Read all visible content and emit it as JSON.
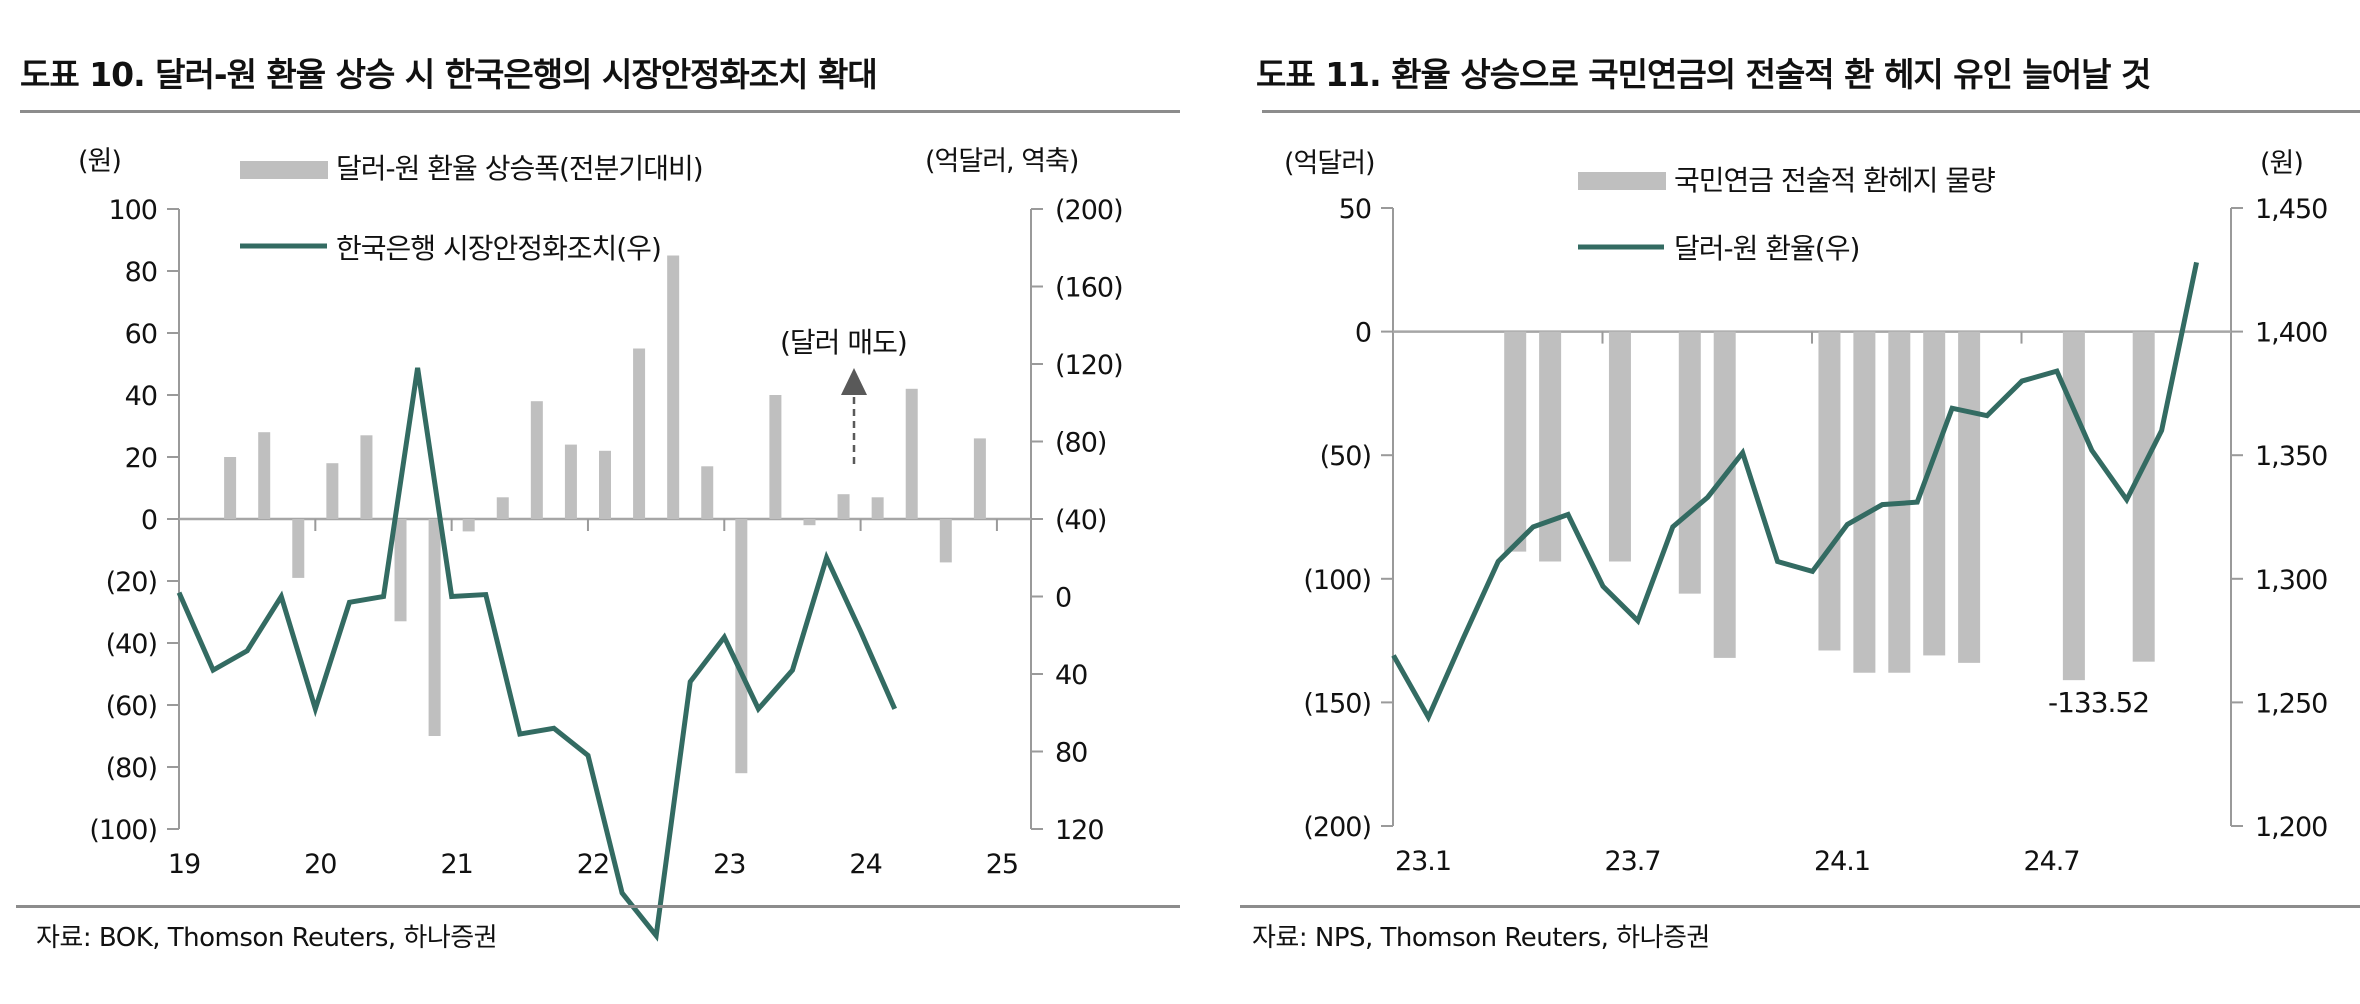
{
  "colors": {
    "bar": "#bfbfbf",
    "line": "#336b62",
    "axis": "#9a9a9a",
    "arrow": "#595959"
  },
  "chart_data": [
    {
      "id": "fig10",
      "type": "bar+line",
      "title": "도표 10. 달러-원 환율 상승 시 한국은행의 시장안정화조치 확대",
      "source": "자료: BOK, Thomson Reuters, 하나증권",
      "left_unit": "(원)",
      "right_unit": "(억달러, 역축)",
      "annotation": "(달러 매도)",
      "x_tick_labels": [
        "19",
        "20",
        "21",
        "22",
        "23",
        "24",
        "25"
      ],
      "x_periods": [
        "19Q1",
        "19Q2",
        "19Q3",
        "19Q4",
        "20Q1",
        "20Q2",
        "20Q3",
        "20Q4",
        "21Q1",
        "21Q2",
        "21Q3",
        "21Q4",
        "22Q1",
        "22Q2",
        "22Q3",
        "22Q4",
        "23Q1",
        "23Q2",
        "23Q3",
        "23Q4",
        "24Q1",
        "24Q2",
        "24Q3",
        "24Q4",
        "25Q1"
      ],
      "left_axis": {
        "ticks": [
          "100",
          "80",
          "60",
          "40",
          "20",
          "0",
          "(20)",
          "(40)",
          "(60)",
          "(80)",
          "(100)"
        ],
        "range": [
          -100,
          100
        ]
      },
      "right_axis": {
        "ticks": [
          "(200)",
          "(160)",
          "(120)",
          "(80)",
          "(40)",
          "0",
          "40",
          "80",
          "120"
        ],
        "range": [
          -200,
          120
        ],
        "inverted": true
      },
      "series": [
        {
          "name": "달러-원 환율 상승폭(전분기대비)",
          "type": "bar",
          "axis": "left",
          "values": [
            null,
            20,
            28,
            -19,
            18,
            27,
            -33,
            -70,
            -4,
            7,
            38,
            24,
            22,
            55,
            85,
            17,
            -82,
            40,
            -2,
            8,
            7,
            42,
            -14,
            26,
            null
          ]
        },
        {
          "name": "한국은행 시장안정화조치(우)",
          "type": "line",
          "axis": "right",
          "values": [
            -2,
            38,
            28,
            0,
            58,
            3,
            0,
            -118,
            0,
            -1,
            71,
            68,
            82,
            153,
            175,
            44,
            21,
            58,
            38,
            -20,
            18,
            58,
            null,
            null,
            null
          ]
        }
      ]
    },
    {
      "id": "fig11",
      "type": "bar+line",
      "title": "도표 11. 환율 상승으로 국민연금의 전술적 환 헤지 유인 늘어날 것",
      "source": "자료: NPS, Thomson Reuters, 하나증권",
      "left_unit": "(억달러)",
      "right_unit": "(원)",
      "data_label": "-133.52",
      "x_tick_labels": [
        "23.1",
        "23.7",
        "24.1",
        "24.7"
      ],
      "x_periods": [
        "23.1",
        "23.2",
        "23.3",
        "23.4",
        "23.5",
        "23.6",
        "23.7",
        "23.8",
        "23.9",
        "23.10",
        "23.11",
        "23.12",
        "24.1",
        "24.2",
        "24.3",
        "24.4",
        "24.5",
        "24.6",
        "24.7",
        "24.8",
        "24.9",
        "24.10",
        "24.11",
        "24.12"
      ],
      "left_axis": {
        "ticks": [
          "50",
          "0",
          "(50)",
          "(100)",
          "(150)",
          "(200)"
        ],
        "range": [
          -200,
          50
        ]
      },
      "right_axis": {
        "ticks": [
          "1,450",
          "1,400",
          "1,350",
          "1,300",
          "1,250",
          "1,200"
        ],
        "range": [
          1200,
          1450
        ]
      },
      "series": [
        {
          "name": "국민연금 전술적 환헤지 물량",
          "type": "bar",
          "axis": "left",
          "values": [
            null,
            null,
            null,
            -89,
            -93,
            null,
            -93,
            null,
            -106,
            -132,
            null,
            null,
            -129,
            -138,
            -138,
            -131,
            -134,
            null,
            null,
            -141,
            null,
            -133.52,
            null,
            null
          ]
        },
        {
          "name": "달러-원 환율(우)",
          "type": "line",
          "axis": "right",
          "values": [
            1269,
            1244,
            1276,
            1307,
            1321,
            1326,
            1297,
            1283,
            1321,
            1333,
            1351,
            1307,
            1303,
            1322,
            1330,
            1331,
            1369,
            1366,
            1380,
            1384,
            1352,
            1332,
            1360,
            1428
          ]
        }
      ]
    }
  ]
}
